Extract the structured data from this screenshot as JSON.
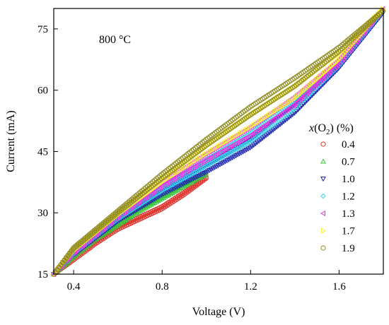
{
  "chart_data": {
    "type": "scatter",
    "xlabel": "Voltage (V)",
    "ylabel": "Current (mA)",
    "xlim": [
      0.31,
      1.8
    ],
    "ylim": [
      15,
      80
    ],
    "xticks": [
      0.4,
      0.8,
      1.2,
      1.6
    ],
    "yticks": [
      15,
      30,
      45,
      60,
      75
    ],
    "x_tick_labels": [
      "0.4",
      "0.8",
      "1.2",
      "1.6"
    ],
    "y_tick_labels": [
      "15",
      "30",
      "45",
      "60",
      "75"
    ],
    "annotation": "800 °C",
    "legend_title": {
      "italic": "x",
      "open": "(O",
      "sub": "2",
      "close": ") (%)"
    },
    "legend_placement": "right",
    "grid": false,
    "series": [
      {
        "name": "0.4",
        "marker": "circle",
        "color": "#e0302a",
        "upper": [
          [
            0.31,
            15.0
          ],
          [
            0.4,
            19.0
          ],
          [
            0.5,
            23.0
          ],
          [
            0.6,
            26.5
          ],
          [
            0.7,
            29.0
          ],
          [
            0.8,
            31.5
          ],
          [
            0.9,
            35.0
          ],
          [
            1.0,
            38.8
          ]
        ],
        "lower": [
          [
            0.31,
            15.0
          ],
          [
            0.4,
            18.5
          ],
          [
            0.5,
            22.5
          ],
          [
            0.6,
            26.0
          ],
          [
            0.7,
            28.5
          ],
          [
            0.8,
            31.0
          ],
          [
            0.9,
            34.5
          ],
          [
            1.0,
            38.5
          ]
        ]
      },
      {
        "name": "0.7",
        "marker": "triangle-up",
        "color": "#3ac43a",
        "upper": [
          [
            0.31,
            15.0
          ],
          [
            0.4,
            19.5
          ],
          [
            0.5,
            24.0
          ],
          [
            0.6,
            27.5
          ],
          [
            0.7,
            31.0
          ],
          [
            0.8,
            34.0
          ],
          [
            0.9,
            37.0
          ],
          [
            1.0,
            40.0
          ]
        ],
        "lower": [
          [
            0.31,
            15.0
          ],
          [
            0.4,
            19.2
          ],
          [
            0.5,
            23.5
          ],
          [
            0.6,
            27.0
          ],
          [
            0.7,
            30.5
          ],
          [
            0.8,
            33.5
          ],
          [
            0.9,
            36.5
          ],
          [
            1.0,
            39.5
          ]
        ]
      },
      {
        "name": "1.0",
        "marker": "triangle-down",
        "color": "#1c26b0",
        "upper": [
          [
            0.31,
            15.0
          ],
          [
            0.4,
            20.0
          ],
          [
            0.6,
            28.5
          ],
          [
            0.8,
            35.5
          ],
          [
            1.0,
            41.5
          ],
          [
            1.2,
            48.0
          ],
          [
            1.4,
            56.5
          ],
          [
            1.6,
            66.5
          ],
          [
            1.8,
            79.0
          ]
        ],
        "lower": [
          [
            0.31,
            15.0
          ],
          [
            0.4,
            19.7
          ],
          [
            0.6,
            28.0
          ],
          [
            0.8,
            34.5
          ],
          [
            1.0,
            40.0
          ],
          [
            1.2,
            46.0
          ],
          [
            1.4,
            54.5
          ],
          [
            1.6,
            65.5
          ],
          [
            1.8,
            79.0
          ]
        ]
      },
      {
        "name": "1.2",
        "marker": "diamond",
        "color": "#38d3e8",
        "upper": [
          [
            0.31,
            15.0
          ],
          [
            0.4,
            20.2
          ],
          [
            0.6,
            29.0
          ],
          [
            0.8,
            36.5
          ],
          [
            1.0,
            43.0
          ],
          [
            1.2,
            49.5
          ],
          [
            1.4,
            57.5
          ],
          [
            1.6,
            67.0
          ],
          [
            1.8,
            79.5
          ]
        ],
        "lower": [
          [
            0.31,
            15.0
          ],
          [
            0.4,
            20.0
          ],
          [
            0.6,
            28.5
          ],
          [
            0.8,
            35.5
          ],
          [
            1.0,
            41.5
          ],
          [
            1.2,
            47.5
          ],
          [
            1.4,
            55.5
          ],
          [
            1.6,
            66.0
          ],
          [
            1.8,
            79.5
          ]
        ]
      },
      {
        "name": "1.3",
        "marker": "triangle-left",
        "color": "#e82fe0",
        "upper": [
          [
            0.31,
            15.0
          ],
          [
            0.4,
            20.5
          ],
          [
            0.6,
            29.5
          ],
          [
            0.8,
            37.5
          ],
          [
            1.0,
            44.5
          ],
          [
            1.2,
            51.0
          ],
          [
            1.4,
            58.5
          ],
          [
            1.6,
            67.5
          ],
          [
            1.8,
            80.0
          ]
        ],
        "lower": [
          [
            0.31,
            15.0
          ],
          [
            0.4,
            20.2
          ],
          [
            0.6,
            29.0
          ],
          [
            0.8,
            36.5
          ],
          [
            1.0,
            43.0
          ],
          [
            1.2,
            49.0
          ],
          [
            1.4,
            56.5
          ],
          [
            1.6,
            66.5
          ],
          [
            1.8,
            80.0
          ]
        ]
      },
      {
        "name": "1.7",
        "marker": "triangle-right",
        "color": "#f7f03a",
        "upper": [
          [
            0.31,
            15.0
          ],
          [
            0.4,
            21.0
          ],
          [
            0.6,
            30.0
          ],
          [
            0.8,
            38.5
          ],
          [
            1.0,
            46.5
          ],
          [
            1.2,
            54.0
          ],
          [
            1.4,
            61.0
          ],
          [
            1.6,
            69.0
          ],
          [
            1.8,
            80.0
          ]
        ],
        "lower": [
          [
            0.31,
            15.0
          ],
          [
            0.4,
            20.7
          ],
          [
            0.6,
            29.5
          ],
          [
            0.8,
            37.5
          ],
          [
            1.0,
            44.5
          ],
          [
            1.2,
            51.0
          ],
          [
            1.4,
            58.0
          ],
          [
            1.6,
            67.5
          ],
          [
            1.8,
            80.0
          ]
        ]
      },
      {
        "name": "1.9",
        "marker": "circle",
        "color": "#8e8a1c",
        "upper": [
          [
            0.31,
            15.0
          ],
          [
            0.4,
            21.5
          ],
          [
            0.6,
            30.5
          ],
          [
            0.8,
            39.5
          ],
          [
            1.0,
            48.0
          ],
          [
            1.2,
            56.0
          ],
          [
            1.4,
            63.0
          ],
          [
            1.6,
            70.5
          ],
          [
            1.8,
            79.5
          ]
        ],
        "lower": [
          [
            0.31,
            15.0
          ],
          [
            0.4,
            21.2
          ],
          [
            0.6,
            30.0
          ],
          [
            0.8,
            38.5
          ],
          [
            1.0,
            46.5
          ],
          [
            1.2,
            54.0
          ],
          [
            1.4,
            61.0
          ],
          [
            1.6,
            69.5
          ],
          [
            1.8,
            79.5
          ]
        ]
      }
    ]
  }
}
